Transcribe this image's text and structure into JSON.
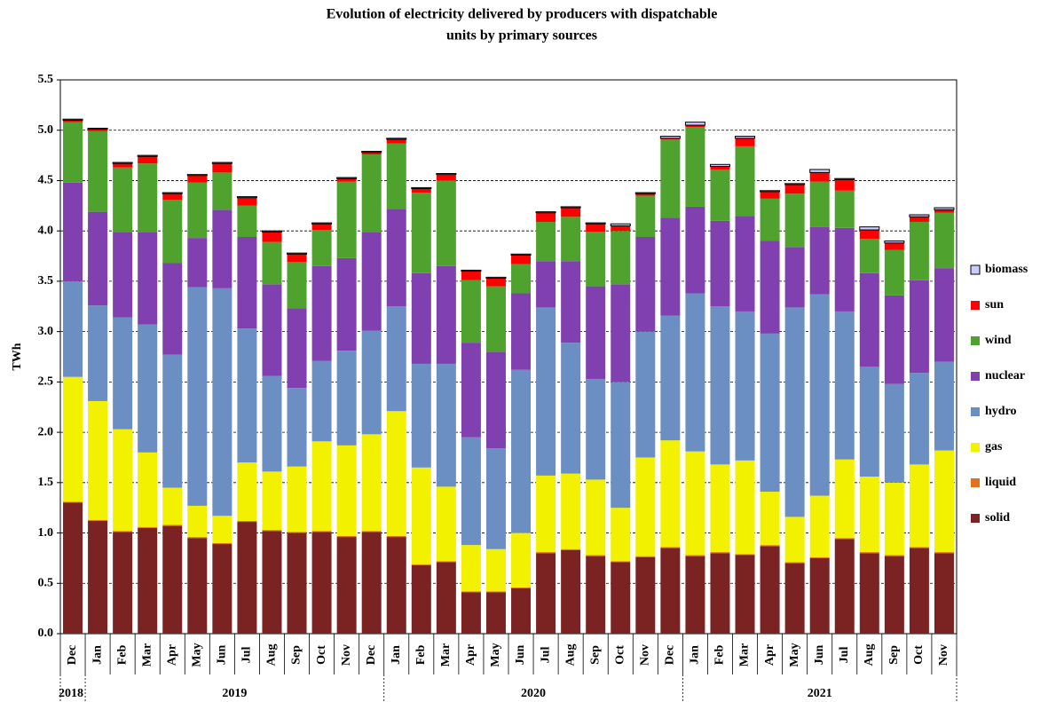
{
  "chart_data": {
    "type": "stacked_bar",
    "title": [
      "Evolution of electricity delivered by producers with dispatchable",
      "units by primary sources"
    ],
    "y_label": "TWh",
    "categories": [
      "Dec",
      "Jan",
      "Feb",
      "Mar",
      "Apr",
      "May",
      "Jun",
      "Jul",
      "Aug",
      "Sep",
      "Oct",
      "Nov",
      "Dec",
      "Jan",
      "Feb",
      "Mar",
      "Apr",
      "May",
      "Jun",
      "Jul",
      "Aug",
      "Sep",
      "Oct",
      "Nov",
      "Dec",
      "Jan",
      "Feb",
      "Mar",
      "Apr",
      "May",
      "Jun",
      "Jul",
      "Aug",
      "Sep",
      "Oct",
      "Nov"
    ],
    "x_groups": [
      {
        "label": "2018",
        "count": 1
      },
      {
        "label": "2019",
        "count": 12
      },
      {
        "label": "2020",
        "count": 12
      },
      {
        "label": "2021",
        "count": 11
      }
    ],
    "series": [
      {
        "name": "solid",
        "color": "#7b2222",
        "values": [
          1.3,
          1.12,
          1.01,
          1.05,
          1.07,
          0.95,
          0.89,
          1.11,
          1.02,
          1.0,
          1.01,
          0.96,
          1.01,
          0.96,
          0.68,
          0.71,
          0.41,
          0.41,
          0.45,
          0.8,
          0.83,
          0.77,
          0.71,
          0.76,
          0.85,
          0.77,
          0.8,
          0.78,
          0.87,
          0.7,
          0.75,
          0.94,
          0.8,
          0.77,
          0.85,
          0.8
        ]
      },
      {
        "name": "liquid",
        "color": "#e2701e",
        "values": [
          0.01,
          0.01,
          0.01,
          0.01,
          0.01,
          0.01,
          0.01,
          0.01,
          0.01,
          0.01,
          0.01,
          0.01,
          0.01,
          0.01,
          0.01,
          0.01,
          0.01,
          0.01,
          0.01,
          0.01,
          0.01,
          0.01,
          0.01,
          0.01,
          0.01,
          0.01,
          0.01,
          0.01,
          0.01,
          0.01,
          0.01,
          0.01,
          0.01,
          0.01,
          0.01,
          0.01
        ]
      },
      {
        "name": "gas",
        "color": "#f2f200",
        "values": [
          1.24,
          1.18,
          1.01,
          0.74,
          0.37,
          0.31,
          0.27,
          0.58,
          0.58,
          0.65,
          0.89,
          0.9,
          0.96,
          1.24,
          0.96,
          0.74,
          0.46,
          0.42,
          0.54,
          0.76,
          0.75,
          0.75,
          0.53,
          0.98,
          1.06,
          1.03,
          0.87,
          0.93,
          0.53,
          0.45,
          0.61,
          0.78,
          0.75,
          0.72,
          0.82,
          1.01
        ]
      },
      {
        "name": "hydro",
        "color": "#6b8fc2",
        "values": [
          0.95,
          0.95,
          1.11,
          1.27,
          1.32,
          2.17,
          2.26,
          1.33,
          0.95,
          0.78,
          0.8,
          0.94,
          1.03,
          1.04,
          1.03,
          1.22,
          1.07,
          1.0,
          1.62,
          1.67,
          1.3,
          1.0,
          1.25,
          1.25,
          1.24,
          1.57,
          1.57,
          1.48,
          1.57,
          2.08,
          2.0,
          1.47,
          1.09,
          0.98,
          0.91,
          0.88
        ]
      },
      {
        "name": "nuclear",
        "color": "#8040b0",
        "values": [
          0.98,
          0.93,
          0.85,
          0.92,
          0.91,
          0.49,
          0.78,
          0.91,
          0.91,
          0.79,
          0.94,
          0.92,
          0.98,
          0.97,
          0.9,
          0.97,
          0.94,
          0.96,
          0.76,
          0.46,
          0.81,
          0.92,
          0.97,
          0.94,
          0.97,
          0.86,
          0.85,
          0.95,
          0.92,
          0.6,
          0.67,
          0.83,
          0.93,
          0.88,
          0.92,
          0.93
        ]
      },
      {
        "name": "wind",
        "color": "#4fa22e",
        "values": [
          0.6,
          0.8,
          0.64,
          0.68,
          0.63,
          0.55,
          0.37,
          0.31,
          0.42,
          0.46,
          0.36,
          0.76,
          0.77,
          0.65,
          0.8,
          0.85,
          0.62,
          0.65,
          0.29,
          0.39,
          0.44,
          0.54,
          0.53,
          0.41,
          0.78,
          0.79,
          0.51,
          0.69,
          0.42,
          0.53,
          0.45,
          0.37,
          0.34,
          0.45,
          0.58,
          0.55
        ]
      },
      {
        "name": "sun",
        "color": "#ff0000",
        "values": [
          0.02,
          0.02,
          0.04,
          0.07,
          0.06,
          0.07,
          0.09,
          0.08,
          0.1,
          0.08,
          0.06,
          0.03,
          0.02,
          0.04,
          0.04,
          0.06,
          0.09,
          0.08,
          0.09,
          0.09,
          0.09,
          0.08,
          0.05,
          0.02,
          0.01,
          0.02,
          0.03,
          0.08,
          0.07,
          0.09,
          0.09,
          0.11,
          0.09,
          0.07,
          0.05,
          0.03
        ]
      },
      {
        "name": "biomass",
        "color": "#ccccff",
        "values": [
          0.01,
          0.01,
          0.01,
          0.01,
          0.01,
          0.01,
          0.01,
          0.01,
          0.01,
          0.01,
          0.01,
          0.01,
          0.01,
          0.01,
          0.01,
          0.01,
          0.01,
          0.01,
          0.01,
          0.01,
          0.01,
          0.01,
          0.02,
          0.01,
          0.02,
          0.03,
          0.02,
          0.02,
          0.01,
          0.01,
          0.03,
          0.01,
          0.03,
          0.02,
          0.02,
          0.02
        ]
      }
    ],
    "ylim": [
      0,
      5.5
    ],
    "yticks": [
      {
        "value": 0,
        "label": "0.0"
      },
      0.5,
      {
        "value": 1,
        "label": "1.0"
      },
      1.5,
      {
        "value": 2,
        "label": "2.0"
      },
      2.5,
      {
        "value": 3,
        "label": "3.0"
      },
      3.5,
      {
        "value": 4,
        "label": "4.0"
      },
      4.5,
      {
        "value": 5,
        "label": "5.0"
      },
      5.5
    ],
    "grid": true,
    "legend": "right"
  }
}
